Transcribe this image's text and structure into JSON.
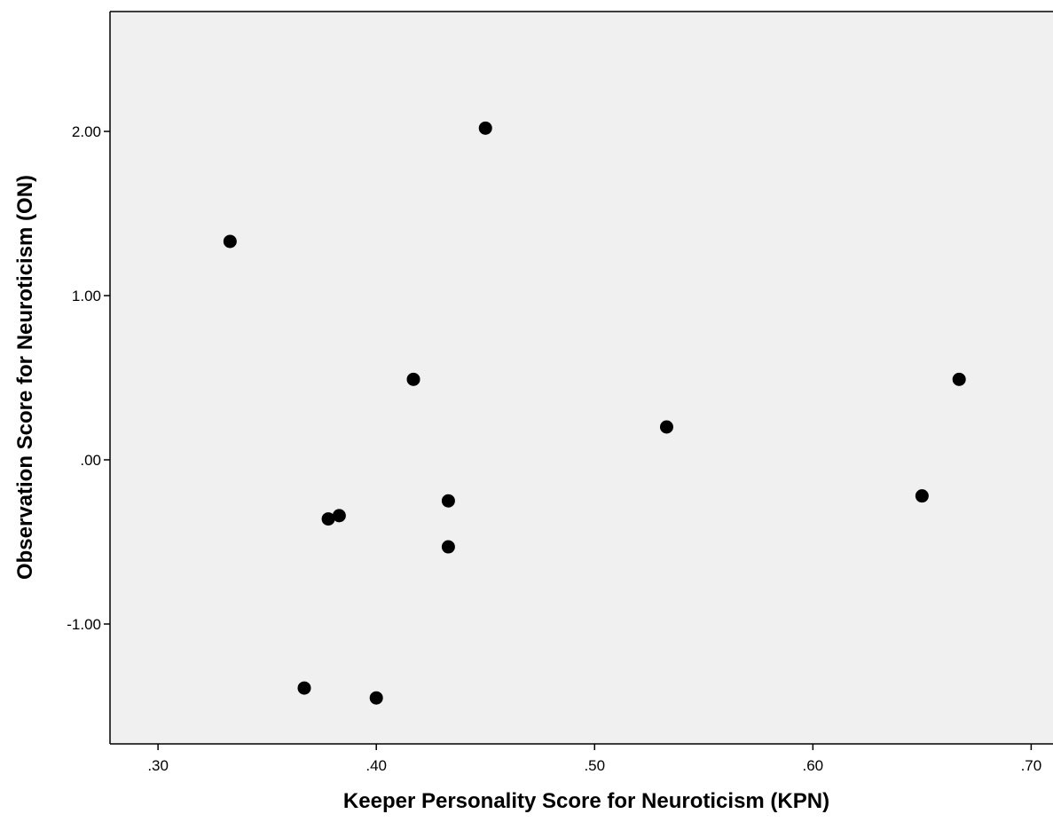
{
  "chart_data": {
    "type": "scatter",
    "title": "",
    "xlabel": "Keeper Personality Score for Neuroticism (KPN)",
    "ylabel": "Observation Score for Neuroticism (ON)",
    "xlim": [
      0.278,
      0.71
    ],
    "ylim": [
      -1.73,
      2.73
    ],
    "x_ticks": [
      {
        "value": 0.3,
        "label": ".30"
      },
      {
        "value": 0.4,
        "label": ".40"
      },
      {
        "value": 0.5,
        "label": ".50"
      },
      {
        "value": 0.6,
        "label": ".60"
      },
      {
        "value": 0.7,
        "label": ".70"
      }
    ],
    "y_ticks": [
      {
        "value": -1.0,
        "label": "-1.00"
      },
      {
        "value": 0.0,
        "label": ".00"
      },
      {
        "value": 1.0,
        "label": "1.00"
      },
      {
        "value": 2.0,
        "label": "2.00"
      }
    ],
    "grid": false,
    "legend": "none",
    "colors": {
      "plot_background": "#f0f0f0",
      "point": "#000000",
      "axis": "#000000",
      "page_background": "#ffffff"
    },
    "points": [
      {
        "x": 0.333,
        "y": 1.33
      },
      {
        "x": 0.45,
        "y": 2.02
      },
      {
        "x": 0.417,
        "y": 0.49
      },
      {
        "x": 0.533,
        "y": 0.2
      },
      {
        "x": 0.667,
        "y": 0.49
      },
      {
        "x": 0.65,
        "y": -0.22
      },
      {
        "x": 0.433,
        "y": -0.25
      },
      {
        "x": 0.433,
        "y": -0.53
      },
      {
        "x": 0.383,
        "y": -0.34
      },
      {
        "x": 0.378,
        "y": -0.36
      },
      {
        "x": 0.367,
        "y": -1.39
      },
      {
        "x": 0.4,
        "y": -1.45
      }
    ]
  }
}
